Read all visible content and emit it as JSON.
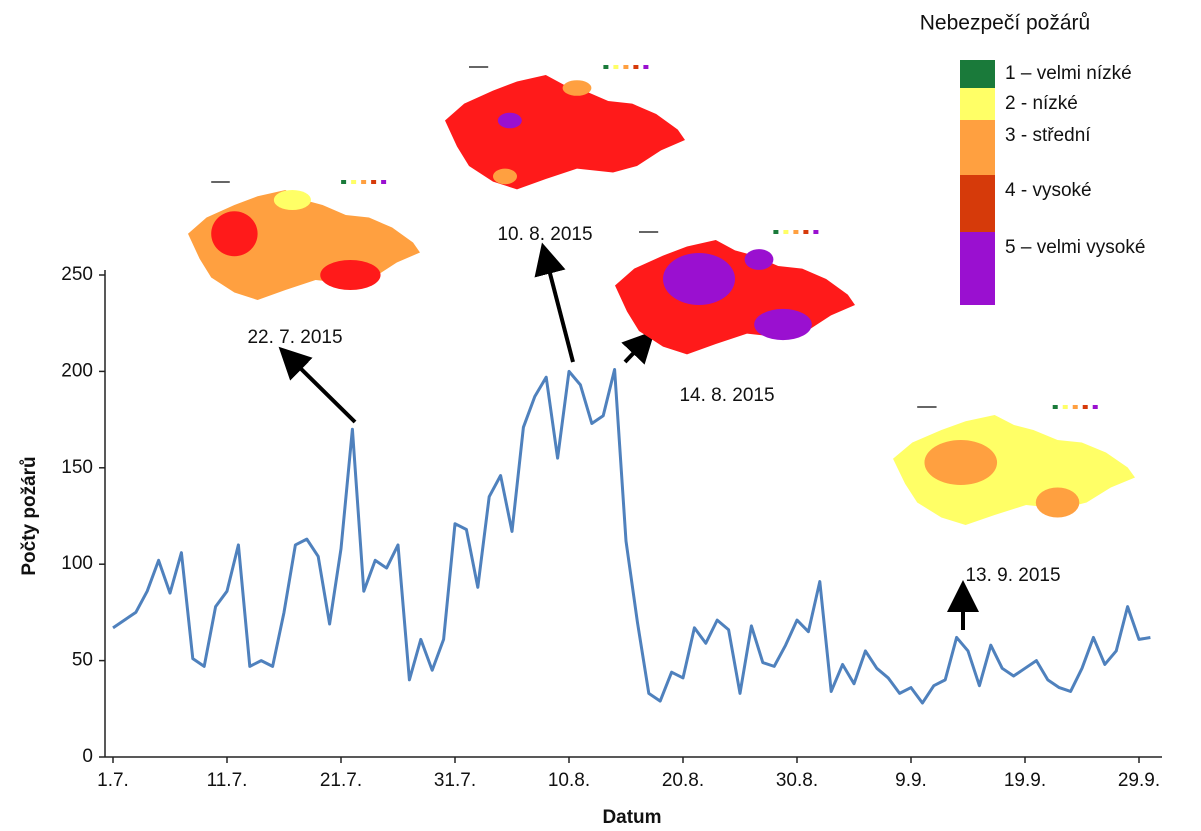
{
  "chart_data": {
    "type": "line",
    "y_label": "Počty požárů",
    "x_label": "Datum",
    "categories": [
      "1.7.",
      null,
      null,
      null,
      null,
      null,
      null,
      null,
      null,
      null,
      "11.7.",
      null,
      null,
      null,
      null,
      null,
      null,
      null,
      null,
      null,
      "21.7.",
      null,
      null,
      null,
      null,
      null,
      null,
      null,
      null,
      null,
      "31.7.",
      null,
      null,
      null,
      null,
      null,
      null,
      null,
      null,
      null,
      "10.8.",
      null,
      null,
      null,
      null,
      null,
      null,
      null,
      null,
      null,
      "20.8.",
      null,
      null,
      null,
      null,
      null,
      null,
      null,
      null,
      null,
      "30.8.",
      null,
      null,
      null,
      null,
      null,
      null,
      null,
      null,
      null,
      "9.9.",
      null,
      null,
      null,
      null,
      null,
      null,
      null,
      null,
      null,
      "19.9.",
      null,
      null,
      null,
      null,
      null,
      null,
      null,
      null,
      null,
      "29.9.",
      null
    ],
    "series": [
      {
        "color": "#4f81bd",
        "values": [
          67,
          71,
          75,
          86,
          102,
          85,
          106,
          51,
          47,
          78,
          86,
          110,
          47,
          50,
          47,
          75,
          110,
          113,
          104,
          69,
          108,
          170,
          86,
          102,
          98,
          110,
          40,
          61,
          45,
          61,
          121,
          118,
          88,
          135,
          146,
          117,
          171,
          187,
          197,
          155,
          200,
          193,
          173,
          177,
          201,
          112,
          70,
          33,
          29,
          44,
          41,
          67,
          59,
          71,
          66,
          33,
          68,
          49,
          47,
          58,
          71,
          65,
          91,
          34,
          48,
          38,
          55,
          46,
          41,
          33,
          36,
          28,
          37,
          40,
          62,
          55,
          37,
          58,
          46,
          42,
          46,
          50,
          40,
          36,
          34,
          46,
          62,
          48,
          55,
          78,
          61,
          62
        ]
      }
    ],
    "ylim": [
      0,
      250
    ],
    "yticks": [
      0,
      50,
      100,
      150,
      200,
      250
    ],
    "grid": false,
    "annotations": [
      "22. 7. 2015",
      "10. 8. 2015",
      "14. 8. 2015",
      "13. 9. 2015"
    ],
    "legend": {
      "title": "Nebezpečí požárů",
      "items": [
        {
          "label": "1 – velmi nízké",
          "color": "#1a7a3a"
        },
        {
          "label": "2 - nízké",
          "color": "#ffff66"
        },
        {
          "label": "3 - střední",
          "color": "#ffa040"
        },
        {
          "label": "4 - vysoké",
          "color": "#d63a0a"
        },
        {
          "label": "5 – velmi vysoké",
          "color": "#9a10d0"
        }
      ]
    }
  }
}
